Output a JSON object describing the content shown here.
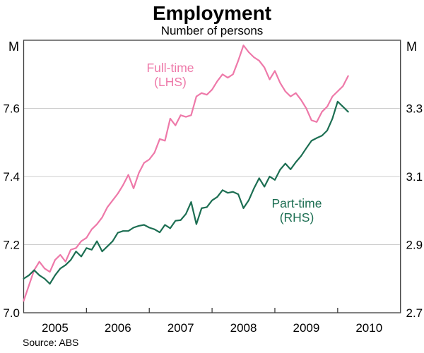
{
  "header": {
    "title": "Employment",
    "subtitle": "Number of persons"
  },
  "footer": {
    "source": "Source: ABS"
  },
  "chart_data": {
    "type": "line",
    "title": "Employment",
    "subtitle": "Number of persons",
    "frame_color": "#3d3d3d",
    "gridline_color": "#cccccc",
    "grid": true,
    "x": {
      "frequency": "monthly",
      "start": "2005-01",
      "end": "2010-03",
      "axis_range": [
        2005,
        2011
      ],
      "year_tick_positions": [
        2006,
        2007,
        2008,
        2009,
        2010
      ],
      "year_labels": [
        "2005",
        "2006",
        "2007",
        "2008",
        "2009",
        "2010"
      ]
    },
    "left_axis": {
      "unit": "M",
      "range": [
        7.0,
        7.8
      ],
      "tick_values": [
        7.6,
        7.4,
        7.2,
        7.0
      ],
      "tick_labels": [
        "7.6",
        "7.4",
        "7.2",
        "7.0"
      ],
      "gridline_values": [
        7.6,
        7.4,
        7.2
      ]
    },
    "right_axis": {
      "unit": "M",
      "range": [
        2.7,
        3.5
      ],
      "tick_values": [
        3.3,
        3.1,
        2.9,
        2.7
      ],
      "tick_labels": [
        "3.3",
        "3.1",
        "2.9",
        "2.7"
      ],
      "gridline_values": [
        3.3,
        3.1,
        2.9
      ]
    },
    "series": [
      {
        "name": "Full-time",
        "axis": "left",
        "color": "#ee79a9",
        "label_line1": "Full-time",
        "label_line2": "(LHS)",
        "values": [
          7.035,
          7.08,
          7.125,
          7.15,
          7.13,
          7.12,
          7.155,
          7.17,
          7.15,
          7.185,
          7.19,
          7.21,
          7.22,
          7.245,
          7.26,
          7.28,
          7.31,
          7.33,
          7.35,
          7.375,
          7.405,
          7.365,
          7.41,
          7.44,
          7.45,
          7.47,
          7.51,
          7.505,
          7.57,
          7.55,
          7.58,
          7.575,
          7.58,
          7.635,
          7.645,
          7.64,
          7.655,
          7.68,
          7.7,
          7.69,
          7.7,
          7.74,
          7.785,
          7.765,
          7.75,
          7.74,
          7.72,
          7.685,
          7.71,
          7.675,
          7.65,
          7.635,
          7.645,
          7.625,
          7.6,
          7.565,
          7.56,
          7.59,
          7.605,
          7.635,
          7.65,
          7.665,
          7.695
        ]
      },
      {
        "name": "Part-time",
        "axis": "right",
        "color": "#1c6e52",
        "label_line1": "Part-time",
        "label_line2": "(RHS)",
        "values": [
          2.8,
          2.81,
          2.825,
          2.81,
          2.8,
          2.785,
          2.81,
          2.83,
          2.84,
          2.855,
          2.88,
          2.865,
          2.89,
          2.885,
          2.91,
          2.88,
          2.895,
          2.91,
          2.935,
          2.94,
          2.94,
          2.95,
          2.955,
          2.958,
          2.95,
          2.945,
          2.936,
          2.958,
          2.948,
          2.97,
          2.972,
          2.99,
          3.025,
          2.96,
          3.007,
          3.01,
          3.03,
          3.04,
          3.06,
          3.052,
          3.055,
          3.048,
          3.007,
          3.03,
          3.065,
          3.095,
          3.07,
          3.1,
          3.09,
          3.12,
          3.138,
          3.121,
          3.142,
          3.16,
          3.183,
          3.205,
          3.213,
          3.22,
          3.235,
          3.27,
          3.32,
          3.305,
          3.29
        ]
      }
    ]
  }
}
